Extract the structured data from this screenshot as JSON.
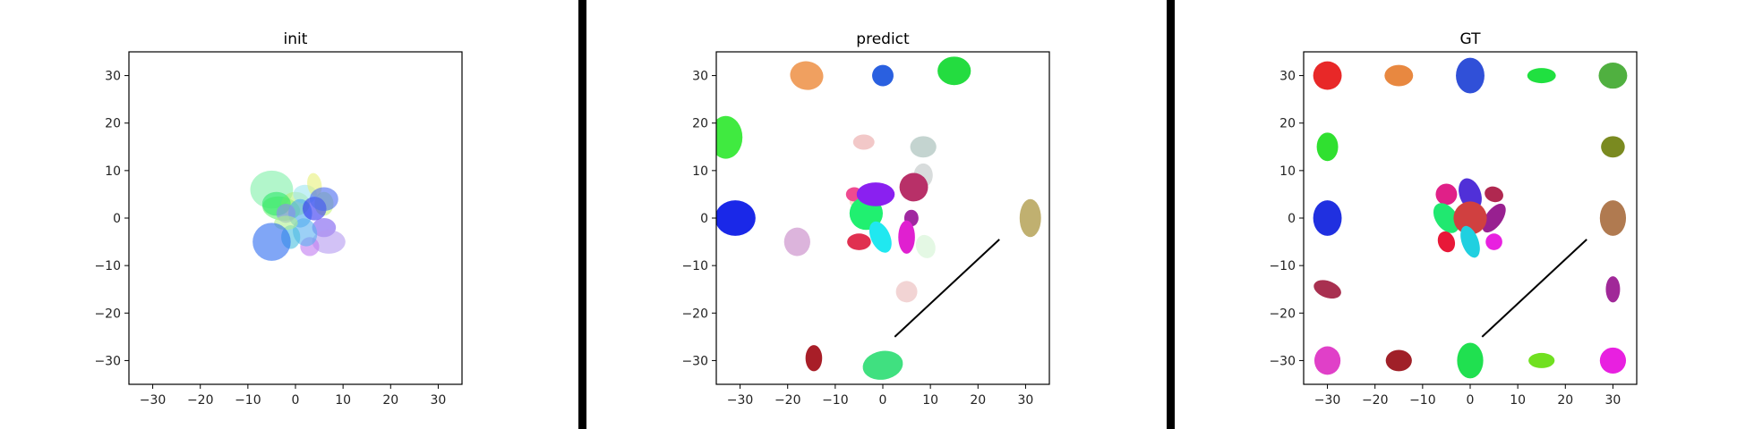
{
  "chart_data": [
    {
      "type": "scatter",
      "title": "init",
      "xlabel": "",
      "ylabel": "",
      "xlim": [
        -35,
        35
      ],
      "ylim": [
        -35,
        35
      ],
      "xticks": [
        -30,
        -20,
        -10,
        0,
        10,
        20,
        30
      ],
      "yticks": [
        -30,
        -20,
        -10,
        0,
        10,
        20,
        30
      ],
      "grid": false,
      "ellipses": [
        {
          "x": -5,
          "y": 6,
          "w": 9,
          "h": 8,
          "angle": 0,
          "color": "#7ff0a8"
        },
        {
          "x": -3,
          "y": 2,
          "w": 8,
          "h": 5,
          "angle": -10,
          "color": "#5ef06a"
        },
        {
          "x": 0,
          "y": 3,
          "w": 6,
          "h": 5,
          "angle": 0,
          "color": "#b8f07a"
        },
        {
          "x": 2,
          "y": 5,
          "w": 5,
          "h": 4,
          "angle": 0,
          "color": "#9fe6f0"
        },
        {
          "x": 4,
          "y": 7,
          "w": 3,
          "h": 5,
          "angle": 10,
          "color": "#e8f07a"
        },
        {
          "x": 6,
          "y": 3,
          "w": 4,
          "h": 5,
          "angle": 0,
          "color": "#c6f57a"
        },
        {
          "x": -4,
          "y": 3,
          "w": 6,
          "h": 5,
          "angle": 0,
          "color": "#2ee86a"
        },
        {
          "x": 1,
          "y": 1,
          "w": 5,
          "h": 6,
          "angle": 0,
          "color": "#4aa8f0"
        },
        {
          "x": 4,
          "y": 2,
          "w": 5,
          "h": 5,
          "angle": 0,
          "color": "#3030f0"
        },
        {
          "x": 6,
          "y": 4,
          "w": 6,
          "h": 5,
          "angle": 0,
          "color": "#4a6af0"
        },
        {
          "x": -2,
          "y": 1,
          "w": 4,
          "h": 4,
          "angle": 0,
          "color": "#8a8af0"
        },
        {
          "x": 6,
          "y": -2,
          "w": 5,
          "h": 4,
          "angle": 0,
          "color": "#7a5af0"
        },
        {
          "x": 7,
          "y": -5,
          "w": 7,
          "h": 5,
          "angle": 0,
          "color": "#b49af0"
        },
        {
          "x": 3,
          "y": -6,
          "w": 4,
          "h": 4,
          "angle": 0,
          "color": "#c07af0"
        },
        {
          "x": 2,
          "y": -3,
          "w": 5,
          "h": 6,
          "angle": 20,
          "color": "#5ab0f0"
        },
        {
          "x": -1,
          "y": -4,
          "w": 4,
          "h": 5,
          "angle": 0,
          "color": "#4ac0e0"
        },
        {
          "x": -2,
          "y": -1,
          "w": 5,
          "h": 3,
          "angle": 0,
          "color": "#b0f090"
        },
        {
          "x": -5,
          "y": -5,
          "w": 8,
          "h": 8,
          "angle": 0,
          "color": "#2b6af0"
        }
      ],
      "line": null
    },
    {
      "type": "scatter",
      "title": "predict",
      "xlabel": "",
      "ylabel": "",
      "xlim": [
        -35,
        35
      ],
      "ylim": [
        -35,
        35
      ],
      "xticks": [
        -30,
        -20,
        -10,
        0,
        10,
        20,
        30
      ],
      "yticks": [
        -30,
        -20,
        -10,
        0,
        10,
        20,
        30
      ],
      "grid": false,
      "ellipses": [
        {
          "x": -16,
          "y": 30,
          "w": 7,
          "h": 6,
          "angle": -10,
          "color": "#f0a060"
        },
        {
          "x": 0,
          "y": 30,
          "w": 4.5,
          "h": 4.5,
          "angle": -15,
          "color": "#2a60e0"
        },
        {
          "x": 15,
          "y": 31,
          "w": 7,
          "h": 6,
          "angle": 0,
          "color": "#24dc40"
        },
        {
          "x": -33,
          "y": 17,
          "w": 7,
          "h": 9,
          "angle": 0,
          "color": "#40ea40"
        },
        {
          "x": -4,
          "y": 16,
          "w": 4.5,
          "h": 3.2,
          "angle": 0,
          "color": "#f2c8c8"
        },
        {
          "x": 8.5,
          "y": 15,
          "w": 5.5,
          "h": 4.5,
          "angle": 0,
          "color": "#c4d4d0"
        },
        {
          "x": 8.5,
          "y": 9,
          "w": 4,
          "h": 5,
          "angle": 0,
          "color": "#d8dcdc"
        },
        {
          "x": -5,
          "y": 3.5,
          "w": 4,
          "h": 3,
          "angle": 0,
          "color": "#f0e4c8"
        },
        {
          "x": -6,
          "y": 5,
          "w": 3.5,
          "h": 3,
          "angle": 0,
          "color": "#ef4a90"
        },
        {
          "x": -3.5,
          "y": 1,
          "w": 7,
          "h": 7,
          "angle": 0,
          "color": "#20f070"
        },
        {
          "x": -1.5,
          "y": 5,
          "w": 8,
          "h": 5,
          "angle": 0,
          "color": "#8a20f0"
        },
        {
          "x": 6.5,
          "y": 6.5,
          "w": 6,
          "h": 6,
          "angle": 0,
          "color": "#b83068"
        },
        {
          "x": 6,
          "y": 0,
          "w": 3,
          "h": 3.5,
          "angle": 0,
          "color": "#a028a0"
        },
        {
          "x": -31,
          "y": 0,
          "w": 8.5,
          "h": 7.5,
          "angle": 0,
          "color": "#1a28e8"
        },
        {
          "x": -18,
          "y": -5,
          "w": 5.5,
          "h": 6,
          "angle": 0,
          "color": "#dcb4dc"
        },
        {
          "x": -5,
          "y": -5,
          "w": 5,
          "h": 3.5,
          "angle": 0,
          "color": "#e03050"
        },
        {
          "x": -0.5,
          "y": -4,
          "w": 4,
          "h": 7,
          "angle": 25,
          "color": "#20e8f0"
        },
        {
          "x": 5,
          "y": -4,
          "w": 3.5,
          "h": 7,
          "angle": 0,
          "color": "#e020d0"
        },
        {
          "x": 9,
          "y": -6,
          "w": 4,
          "h": 5,
          "angle": 20,
          "color": "#e4f8e4"
        },
        {
          "x": 5,
          "y": -15.5,
          "w": 4.5,
          "h": 4.5,
          "angle": 0,
          "color": "#f2d4d4"
        },
        {
          "x": -14.5,
          "y": -29.5,
          "w": 3.5,
          "h": 5.5,
          "angle": 0,
          "color": "#a81e28"
        },
        {
          "x": 0,
          "y": -31,
          "w": 8.5,
          "h": 6,
          "angle": 10,
          "color": "#40e080"
        },
        {
          "x": 31,
          "y": 0,
          "w": 4.5,
          "h": 8,
          "angle": 0,
          "color": "#c0b070"
        }
      ],
      "line": {
        "x": [
          2.5,
          24.5
        ],
        "y": [
          -25,
          -4.5
        ]
      }
    },
    {
      "type": "scatter",
      "title": "GT",
      "xlabel": "",
      "ylabel": "",
      "xlim": [
        -35,
        35
      ],
      "ylim": [
        -35,
        35
      ],
      "xticks": [
        -30,
        -20,
        -10,
        0,
        10,
        20,
        30
      ],
      "yticks": [
        -30,
        -20,
        -10,
        0,
        10,
        20,
        30
      ],
      "grid": false,
      "ellipses": [
        {
          "x": -30,
          "y": 30,
          "w": 6,
          "h": 6,
          "angle": 0,
          "color": "#e82828"
        },
        {
          "x": -15,
          "y": 30,
          "w": 6,
          "h": 4.5,
          "angle": 0,
          "color": "#e88840"
        },
        {
          "x": 0,
          "y": 30,
          "w": 6,
          "h": 7.5,
          "angle": 0,
          "color": "#3050d8"
        },
        {
          "x": 15,
          "y": 30,
          "w": 6,
          "h": 3.2,
          "angle": 0,
          "color": "#20e040"
        },
        {
          "x": 30,
          "y": 30,
          "w": 6,
          "h": 5.5,
          "angle": 0,
          "color": "#50b040"
        },
        {
          "x": -30,
          "y": 15,
          "w": 4.5,
          "h": 6,
          "angle": 0,
          "color": "#30e030"
        },
        {
          "x": 30,
          "y": 15,
          "w": 5,
          "h": 4.5,
          "angle": 0,
          "color": "#7a8a20"
        },
        {
          "x": -30,
          "y": 0,
          "w": 6,
          "h": 7.5,
          "angle": 0,
          "color": "#2030e0"
        },
        {
          "x": 30,
          "y": 0,
          "w": 5.5,
          "h": 7.5,
          "angle": 0,
          "color": "#b07a50"
        },
        {
          "x": -30,
          "y": -15,
          "w": 6,
          "h": 3.5,
          "angle": -20,
          "color": "#a83050"
        },
        {
          "x": 30,
          "y": -15,
          "w": 3,
          "h": 5.5,
          "angle": 0,
          "color": "#a02898"
        },
        {
          "x": -30,
          "y": -30,
          "w": 5.5,
          "h": 6,
          "angle": 0,
          "color": "#e040c8"
        },
        {
          "x": -15,
          "y": -30,
          "w": 5.5,
          "h": 4.5,
          "angle": 0,
          "color": "#a02028"
        },
        {
          "x": 0,
          "y": -30,
          "w": 5.5,
          "h": 7.5,
          "angle": 0,
          "color": "#20e050"
        },
        {
          "x": 15,
          "y": -30,
          "w": 5.5,
          "h": 3.2,
          "angle": 0,
          "color": "#70e020"
        },
        {
          "x": 30,
          "y": -30,
          "w": 5.5,
          "h": 5.5,
          "angle": 0,
          "color": "#e820e0"
        },
        {
          "x": -5,
          "y": 5,
          "w": 4.5,
          "h": 4.5,
          "angle": 0,
          "color": "#e02088"
        },
        {
          "x": 5,
          "y": 5,
          "w": 4,
          "h": 3.2,
          "angle": -20,
          "color": "#b02850"
        },
        {
          "x": 0,
          "y": 5,
          "w": 4.5,
          "h": 7,
          "angle": 20,
          "color": "#5030d8"
        },
        {
          "x": -5,
          "y": 0,
          "w": 4.5,
          "h": 7,
          "angle": 35,
          "color": "#20e870"
        },
        {
          "x": 5,
          "y": 0,
          "w": 3.5,
          "h": 7,
          "angle": -35,
          "color": "#982090"
        },
        {
          "x": 0,
          "y": 0,
          "w": 7,
          "h": 7,
          "angle": 0,
          "color": "#d04040"
        },
        {
          "x": -5,
          "y": -5,
          "w": 3.5,
          "h": 4.5,
          "angle": 20,
          "color": "#e81838"
        },
        {
          "x": 0,
          "y": -5,
          "w": 3.5,
          "h": 7,
          "angle": 20,
          "color": "#20d0e0"
        },
        {
          "x": 5,
          "y": -5,
          "w": 3.5,
          "h": 3.5,
          "angle": 0,
          "color": "#e820e0"
        }
      ],
      "line": {
        "x": [
          2.5,
          24.5
        ],
        "y": [
          -25,
          -4.5
        ]
      }
    }
  ],
  "separator_color": "#000000",
  "line_color": "#000000"
}
